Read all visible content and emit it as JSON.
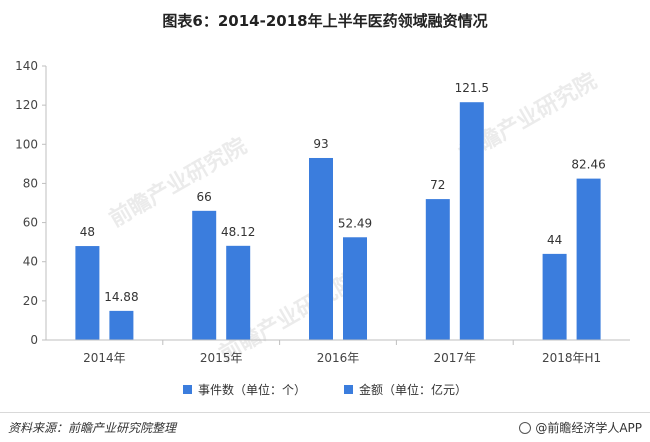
{
  "chart_data": {
    "type": "bar",
    "title": "图表6：2014-2018年上半年医药领域融资情况",
    "categories": [
      "2014年",
      "2015年",
      "2016年",
      "2017年",
      "2018年H1"
    ],
    "series": [
      {
        "name": "事件数（单位：个）",
        "values": [
          48,
          66,
          93,
          72,
          44
        ],
        "labels": [
          "48",
          "66",
          "93",
          "72",
          "44"
        ],
        "color": "#3b7ddd"
      },
      {
        "name": "金额（单位：亿元）",
        "values": [
          14.88,
          48.12,
          52.49,
          121.5,
          82.46
        ],
        "labels": [
          "14.88",
          "48.12",
          "52.49",
          "121.5",
          "82.46"
        ],
        "color": "#3b7ddd"
      }
    ],
    "ylim": [
      0,
      140
    ],
    "yticks": [
      0,
      20,
      40,
      60,
      80,
      100,
      120,
      140
    ],
    "grid": false,
    "legend": "bottom-center"
  },
  "footer": {
    "source": "资料来源：前瞻产业研究院整理",
    "brand": "@前瞻经济学人APP"
  },
  "watermark": {
    "text": "前瞻产业研究院"
  }
}
